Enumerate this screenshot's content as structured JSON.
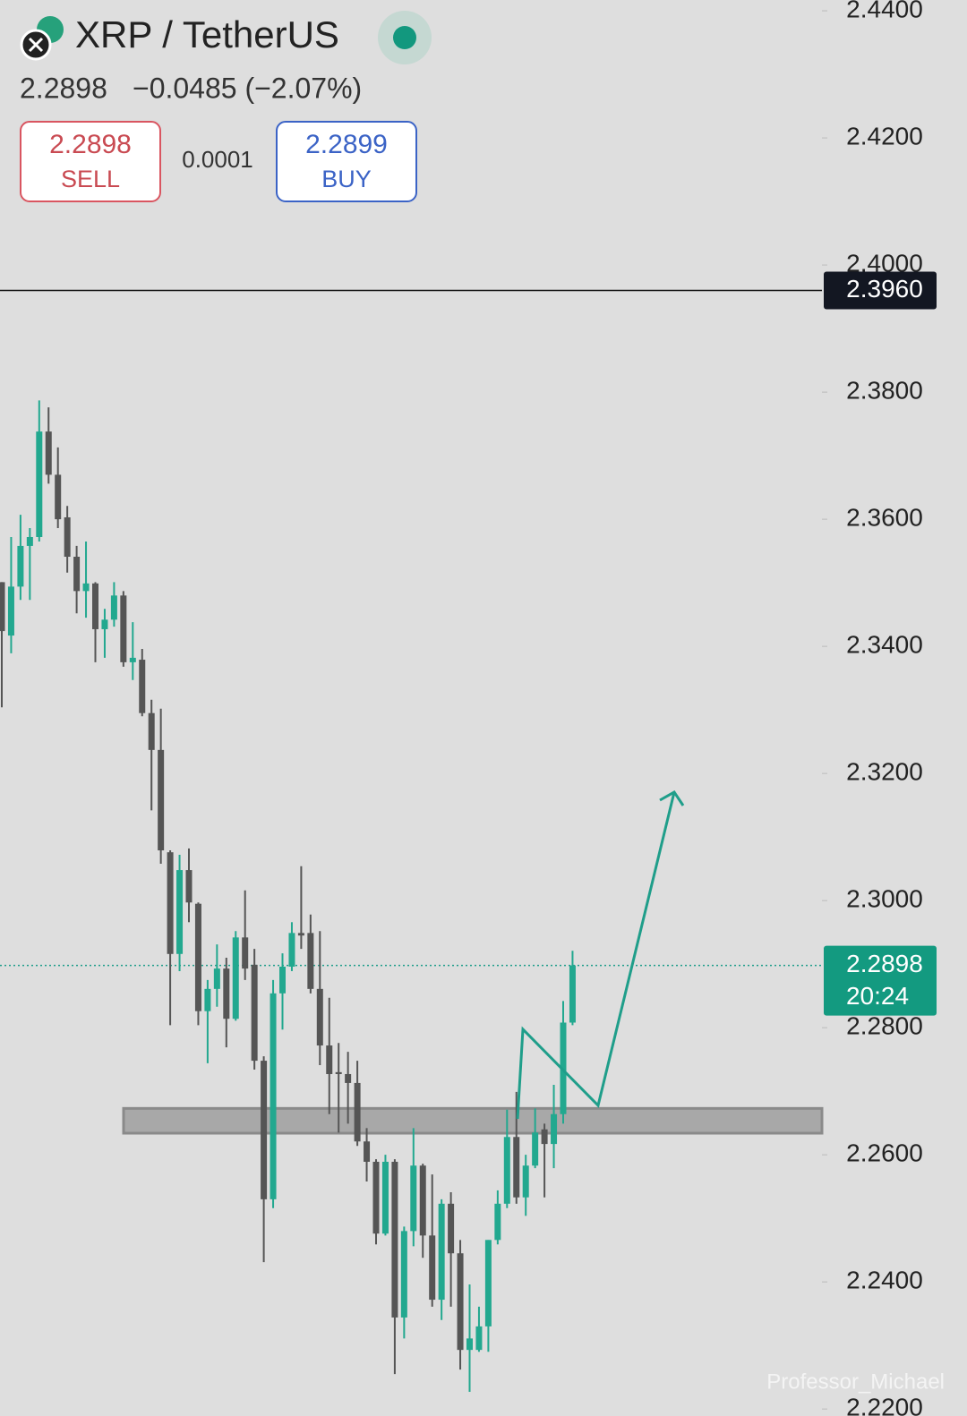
{
  "chart_data": {
    "type": "candlestick",
    "title": "XRP / TetherUS",
    "price": "2.2898",
    "change": "−0.0485 (−2.07%)",
    "sell": {
      "price": "2.2898",
      "label": "SELL"
    },
    "spread": "0.0001",
    "buy": {
      "price": "2.2899",
      "label": "BUY"
    },
    "up_color": "#22a88f",
    "down_color": "#555555",
    "open": [
      2.3501,
      2.3417,
      2.3494,
      2.3558,
      2.3572,
      2.3738,
      2.367,
      2.3603,
      2.3541,
      2.3487,
      2.3499,
      2.3427,
      2.3442,
      2.348,
      2.3375,
      2.3379,
      2.3295,
      2.3237,
      2.3076,
      2.2916,
      2.3048,
      2.2995,
      2.2826,
      2.2861,
      2.2893,
      2.2814,
      2.2942,
      2.2899,
      2.2748,
      2.253,
      2.2854,
      2.2896,
      2.2949,
      2.2949,
      2.2861,
      2.2772,
      2.273,
      2.2727,
      2.2713,
      2.2621,
      2.2589,
      2.2476,
      2.2589,
      2.2344,
      2.248,
      2.2583,
      2.2473,
      2.2372,
      2.2523,
      2.2445,
      2.2293,
      2.2293,
      2.233,
      2.2466,
      2.2523,
      2.2628,
      2.2533,
      2.2583,
      2.264,
      2.2617,
      2.2664,
      2.2808
    ],
    "high": [
      2.3501,
      2.3572,
      2.3607,
      2.3586,
      2.3787,
      2.3776,
      2.3713,
      2.3621,
      2.3558,
      2.3565,
      2.3501,
      2.3459,
      2.3501,
      2.3487,
      2.3438,
      2.3396,
      2.3316,
      2.3302,
      2.3079,
      2.3072,
      2.3082,
      2.2997,
      2.2875,
      2.2931,
      2.291,
      2.2952,
      2.3016,
      2.2924,
      2.2755,
      2.2875,
      2.2917,
      2.2966,
      2.3054,
      2.2978,
      2.2952,
      2.2847,
      2.2776,
      2.2762,
      2.2748,
      2.2642,
      2.2593,
      2.26,
      2.2593,
      2.2487,
      2.2642,
      2.2586,
      2.2569,
      2.253,
      2.2541,
      2.2466,
      2.2396,
      2.2361,
      2.2466,
      2.2544,
      2.2671,
      2.2699,
      2.26,
      2.2673,
      2.2649,
      2.271,
      2.2842,
      2.2921
    ],
    "low": [
      2.3304,
      2.3389,
      2.3473,
      2.3473,
      2.3565,
      2.3656,
      2.3586,
      2.3516,
      2.3452,
      2.3445,
      2.3375,
      2.3382,
      2.3431,
      2.3368,
      2.3347,
      2.329,
      2.3142,
      2.3058,
      2.2804,
      2.2889,
      2.2966,
      2.2804,
      2.2744,
      2.2833,
      2.2769,
      2.2811,
      2.2875,
      2.2734,
      2.2431,
      2.2516,
      2.2797,
      2.2889,
      2.2924,
      2.2854,
      2.2741,
      2.2664,
      2.2635,
      2.2649,
      2.2614,
      2.2558,
      2.2459,
      2.2473,
      2.2255,
      2.2311,
      2.2456,
      2.2438,
      2.2361,
      2.234,
      2.2361,
      2.2262,
      2.2227,
      2.229,
      2.229,
      2.2459,
      2.2516,
      2.2523,
      2.2504,
      2.2579,
      2.2533,
      2.2579,
      2.2649,
      2.2804
    ],
    "close": [
      2.3424,
      2.3494,
      2.3558,
      2.3572,
      2.3738,
      2.367,
      2.36,
      2.3541,
      2.3487,
      2.3499,
      2.3427,
      2.3442,
      2.348,
      2.3375,
      2.3382,
      2.3295,
      2.3237,
      2.3079,
      2.2916,
      2.3048,
      2.2997,
      2.2826,
      2.2861,
      2.2893,
      2.2814,
      2.2942,
      2.2893,
      2.2748,
      2.253,
      2.2854,
      2.2896,
      2.2949,
      2.2945,
      2.2861,
      2.2772,
      2.2727,
      2.2727,
      2.2713,
      2.2621,
      2.2589,
      2.2476,
      2.2589,
      2.2344,
      2.248,
      2.2583,
      2.2473,
      2.2372,
      2.2523,
      2.2445,
      2.2293,
      2.2311,
      2.233,
      2.2466,
      2.2523,
      2.2628,
      2.2533,
      2.2583,
      2.2635,
      2.2617,
      2.2664,
      2.2808,
      2.2898
    ],
    "ylim": [
      2.2189,
      2.4417
    ],
    "yticks": [
      {
        "value": 2.44,
        "label": "2.4400"
      },
      {
        "value": 2.42,
        "label": "2.4200"
      },
      {
        "value": 2.4,
        "label": "2.4000"
      },
      {
        "value": 2.38,
        "label": "2.3800"
      },
      {
        "value": 2.36,
        "label": "2.3600"
      },
      {
        "value": 2.34,
        "label": "2.3400"
      },
      {
        "value": 2.32,
        "label": "2.3200"
      },
      {
        "value": 2.3,
        "label": "2.3000"
      },
      {
        "value": 2.28,
        "label": "2.2800"
      },
      {
        "value": 2.26,
        "label": "2.2600"
      },
      {
        "value": 2.24,
        "label": "2.2400"
      },
      {
        "value": 2.22,
        "label": "2.2200"
      }
    ],
    "level_line": {
      "value": 2.396,
      "label": "2.3960"
    },
    "last_price": {
      "value": 2.2898,
      "label": "2.2898",
      "timer": "20:24"
    },
    "support_zone": [
      2.2634,
      2.2673
    ],
    "watermark": "Professor_Michael"
  }
}
